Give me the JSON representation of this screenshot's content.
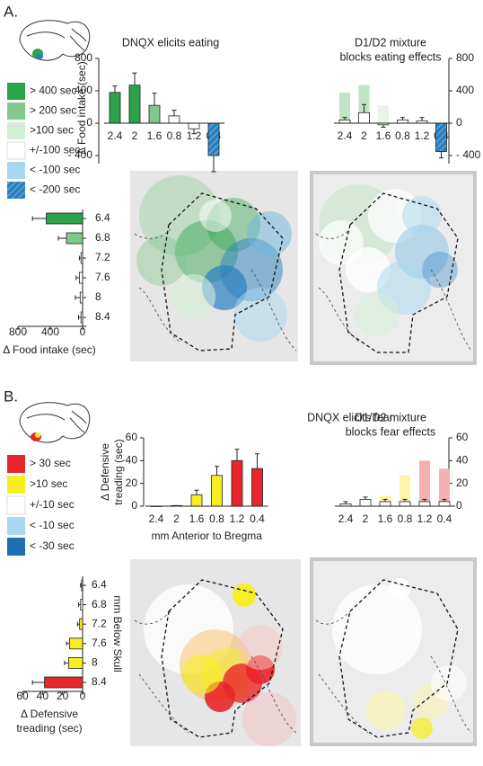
{
  "panels": [
    {
      "label": "A.",
      "legend": [
        {
          "label": "> 400 sec",
          "color": "#2ca24b"
        },
        {
          "label": "> 200 sec",
          "color": "#7fc98a"
        },
        {
          "label": ">100 sec",
          "color": "#d4eed6"
        },
        {
          "label": "+/-100 sec",
          "color": "#ffffff"
        },
        {
          "label": "< -100 sec",
          "color": "#a8d8ef"
        },
        {
          "label": "< -200 sec",
          "color": "#2a7fc0",
          "hatch": true
        }
      ]
    },
    {
      "label": "B.",
      "legend": [
        {
          "label": "> 30 sec",
          "color": "#e8262b"
        },
        {
          "label": ">10 sec",
          "color": "#f7ee1f"
        },
        {
          "label": "+/-10 sec",
          "color": "#ffffff"
        },
        {
          "label": "< -10 sec",
          "color": "#a8d8ef"
        },
        {
          "label": "< -30 sec",
          "color": "#1f6fb0"
        }
      ]
    }
  ],
  "chart_data": [
    {
      "type": "bar",
      "title": "DNQX elicits eating",
      "y_label": "Δ Food intake (sec)",
      "categories": [
        "2.4",
        "2",
        "1.6",
        "0.8",
        "1.2",
        "0.4"
      ],
      "ylim": [
        -500,
        800
      ],
      "yticks": [
        800,
        400,
        0,
        {
          "value": -400,
          "label": "- 400"
        }
      ],
      "series": [
        {
          "colors": [
            "#2ca24b",
            "#2ca24b",
            "#7fc98a",
            "#ffffff",
            "#ffffff",
            "#2a7fc0"
          ],
          "hatch": [
            false,
            false,
            false,
            false,
            false,
            true
          ],
          "values": [
            380,
            470,
            220,
            90,
            -70,
            -400
          ],
          "errors": [
            80,
            150,
            150,
            70,
            60,
            200
          ]
        }
      ]
    },
    {
      "type": "bar",
      "title": "D1/D2 mixture",
      "subtitle": "blocks eating effects",
      "categories": [
        "2.4",
        "2",
        "1.6",
        "0.8",
        "1.2",
        "0.4"
      ],
      "ylim": [
        -500,
        800
      ],
      "yticks": [
        800,
        400,
        0,
        {
          "value": -400,
          "label": "- 400"
        }
      ],
      "axis_side": "right",
      "series": [
        {
          "colors": [
            "#bfe5c4",
            "#bfe5c4",
            "#e6f5e8",
            "#ffffff",
            "#ffffff",
            "#ffffff"
          ],
          "values": [
            380,
            470,
            220,
            null,
            null,
            null
          ]
        },
        {
          "colors": [
            "#ffffff",
            "#ffffff",
            "#ffffff",
            "#ffffff",
            "#ffffff",
            "#2a7fc0"
          ],
          "hatch": [
            false,
            false,
            false,
            false,
            false,
            true
          ],
          "values": [
            40,
            130,
            -20,
            40,
            30,
            -350
          ],
          "errors": [
            30,
            100,
            30,
            30,
            40,
            80
          ]
        }
      ]
    },
    {
      "type": "hbar",
      "x_label": "Δ Food intake (sec)",
      "categories": [
        "6.4",
        "6.8",
        "7.2",
        "7.6",
        "8",
        "8.4"
      ],
      "xlim": [
        800,
        -50
      ],
      "xticks": [
        800,
        400,
        0
      ],
      "series": [
        {
          "colors": [
            "#2ca24b",
            "#7fc98a",
            "#ffffff",
            "#ffffff",
            "#ffffff",
            "#ffffff"
          ],
          "values": [
            450,
            200,
            20,
            40,
            30,
            20
          ],
          "errors": [
            170,
            100,
            20,
            40,
            60,
            30
          ]
        }
      ]
    },
    {
      "type": "bar",
      "title": "DNQX elicits fear",
      "y_label": [
        "Δ Defensive",
        "treading (sec)"
      ],
      "x_label": "mm Anterior to Bregma",
      "categories": [
        "2.4",
        "2",
        "1.6",
        "0.8",
        "1.2",
        "0.4"
      ],
      "ylim": [
        0,
        60
      ],
      "yticks": [
        0,
        20,
        40,
        60
      ],
      "series": [
        {
          "colors": [
            "#ffffff",
            "#ffffff",
            "#f7ee1f",
            "#f7ee1f",
            "#e8262b",
            "#e8262b"
          ],
          "values": [
            0,
            0.5,
            10,
            27,
            40,
            33
          ],
          "errors": [
            0,
            0,
            4,
            8,
            10,
            13
          ]
        }
      ]
    },
    {
      "type": "bar",
      "title": "D1/D2 mixture",
      "subtitle": "blocks fear effects",
      "categories": [
        "2.4",
        "2",
        "1.6",
        "0.8",
        "1.2",
        "0.4"
      ],
      "ylim": [
        0,
        60
      ],
      "yticks": [
        0,
        20,
        40,
        60
      ],
      "axis_side": "right",
      "series": [
        {
          "colors": [
            "#ffffff",
            "#ffffff",
            "#fbf6a8",
            "#fbf6a8",
            "#f6b0b2",
            "#f6b0b2"
          ],
          "values": [
            null,
            null,
            9,
            27,
            40,
            33
          ]
        },
        {
          "colors": [
            "#ffffff",
            "#ffffff",
            "#ffffff",
            "#ffffff",
            "#ffffff",
            "#ffffff"
          ],
          "values": [
            2,
            6,
            4,
            4,
            4,
            4
          ],
          "errors": [
            2,
            2,
            2,
            2,
            2,
            2
          ]
        }
      ]
    },
    {
      "type": "hbar",
      "x_label": [
        "Δ Defensive",
        "treading (sec)"
      ],
      "y_label": "mm Below Skull",
      "categories": [
        "6.4",
        "6.8",
        "7.2",
        "7.6",
        "8",
        "8.4"
      ],
      "xlim": [
        60,
        0
      ],
      "xticks": [
        60,
        40,
        20,
        0
      ],
      "series": [
        {
          "colors": [
            "#ffffff",
            "#ffffff",
            "#f7ee1f",
            "#f7ee1f",
            "#f7ee1f",
            "#e8262b"
          ],
          "values": [
            1,
            2,
            3,
            13,
            14,
            38
          ],
          "errors": [
            1,
            2,
            2,
            3,
            4,
            12
          ]
        }
      ]
    }
  ]
}
